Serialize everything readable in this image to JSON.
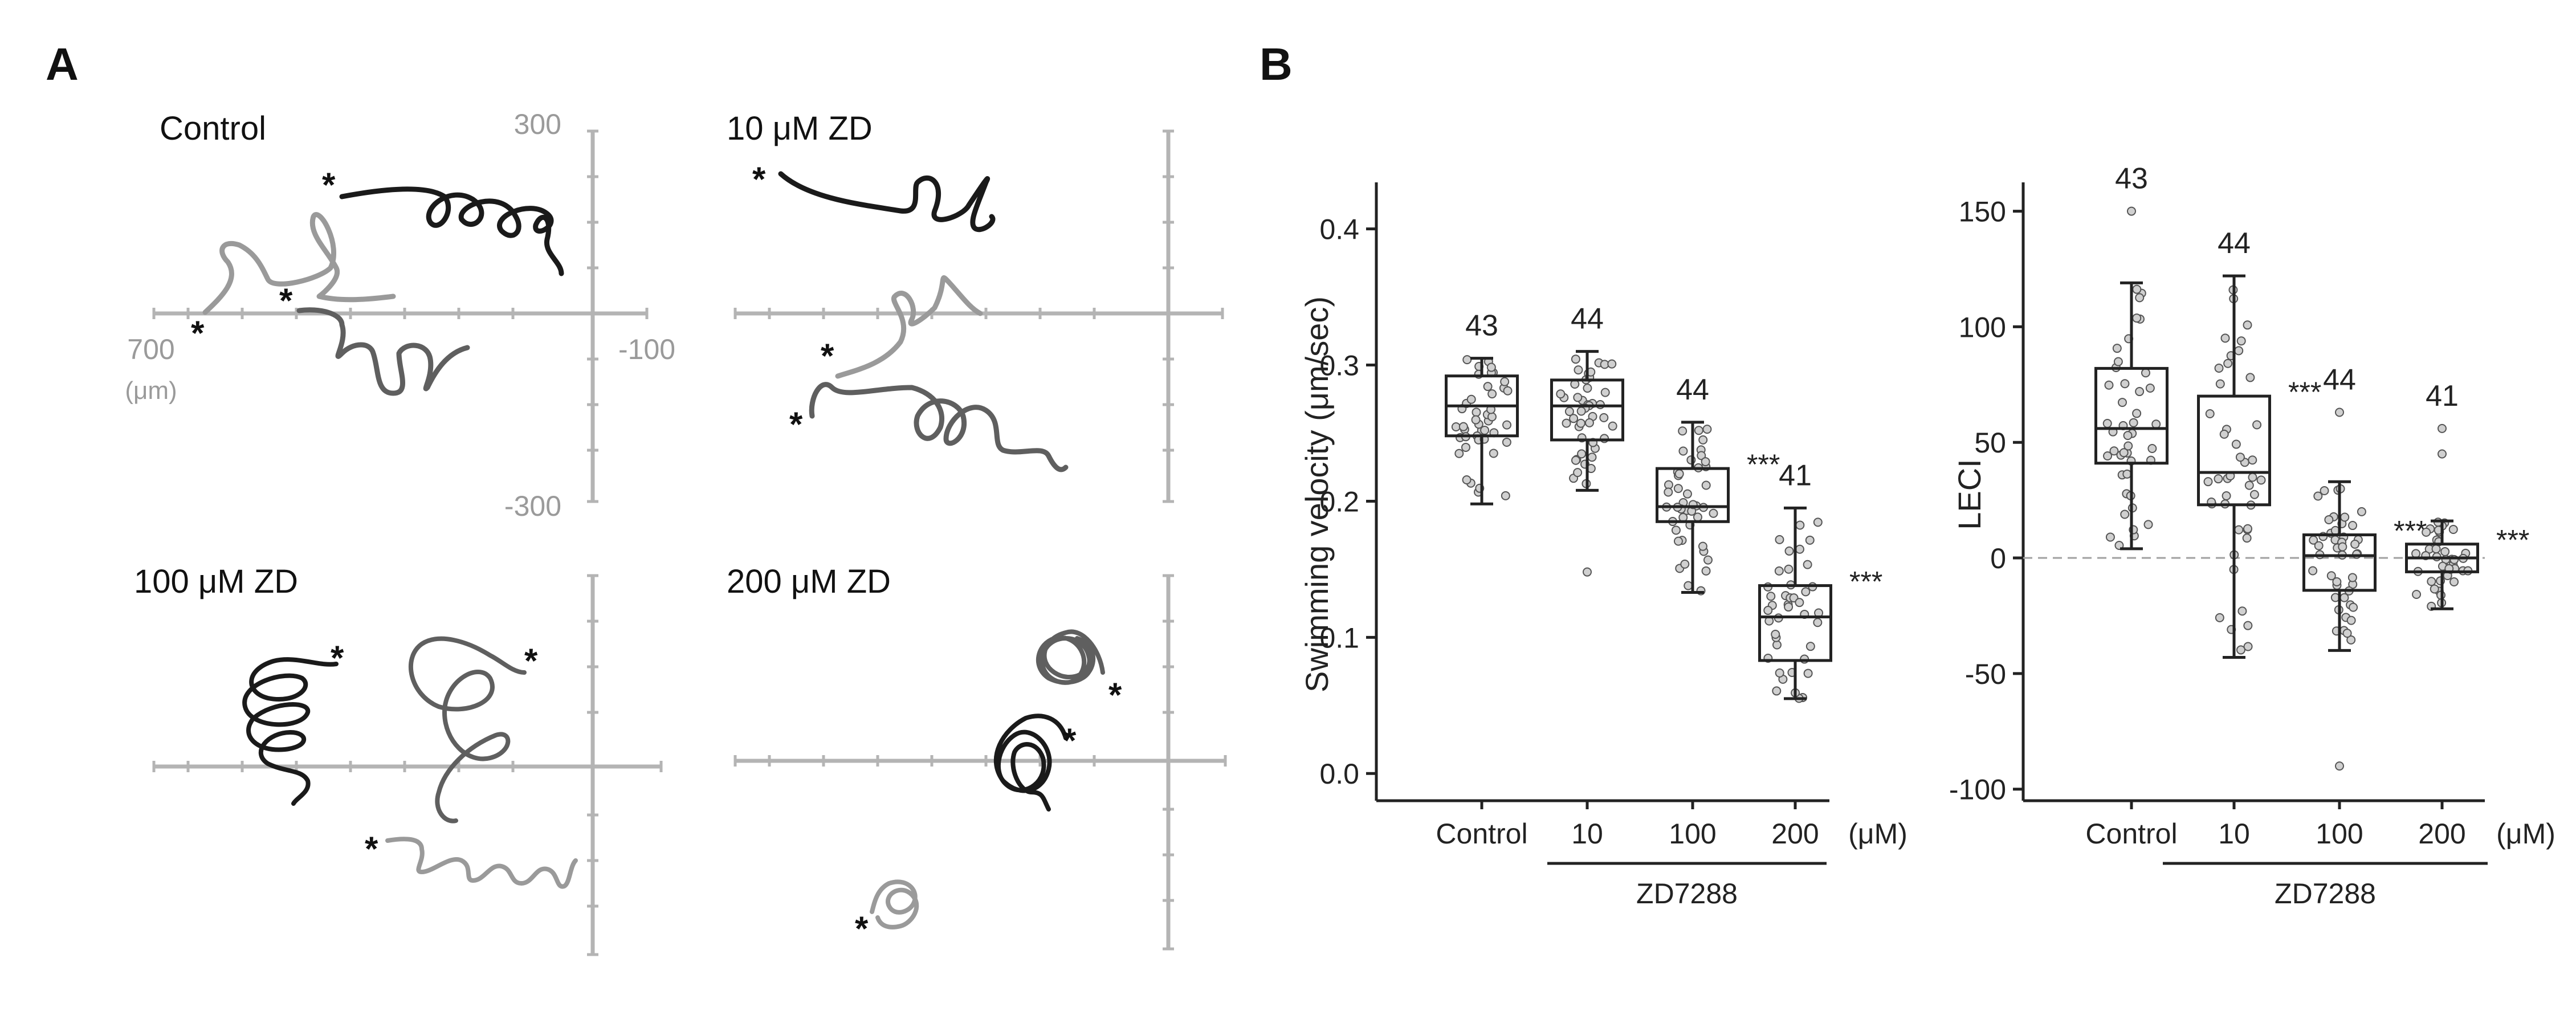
{
  "panel_labels": {
    "a": "A",
    "b": "B"
  },
  "panelA": {
    "axis_color": "#b4b4b4",
    "quadrants": [
      {
        "title": "Control",
        "x_left_label": "700",
        "x_unit_label": "(μm)",
        "x_right_label": "-100",
        "y_top_label": "300",
        "y_bottom_label": "-300"
      },
      {
        "title": "10 μM ZD"
      },
      {
        "title": "100 μM ZD"
      },
      {
        "title": "200 μM ZD"
      }
    ],
    "start_marker": "*",
    "trace_colors": [
      "#1a1a1a",
      "#5f5f5f",
      "#9a9a9a"
    ]
  },
  "chart_data": [
    {
      "type": "box",
      "ylabel": "Swimming velocity (μm/sec)",
      "ylim": [
        -0.02,
        0.43
      ],
      "yticks": [
        0.0,
        0.1,
        0.2,
        0.3,
        0.4
      ],
      "ytick_labels": [
        "0.0",
        "0.1",
        "0.2",
        "0.3",
        "0.4"
      ],
      "categories": [
        "Control",
        "10",
        "100",
        "200"
      ],
      "unit_label": "(μM)",
      "group_label": "ZD7288",
      "n_labels": [
        "43",
        "44",
        "44",
        "41"
      ],
      "significance": [
        "",
        "",
        "***",
        "***"
      ],
      "boxes": [
        {
          "whislo": 0.198,
          "q1": 0.248,
          "med": 0.27,
          "q3": 0.292,
          "whishi": 0.305,
          "outliers": []
        },
        {
          "whislo": 0.208,
          "q1": 0.245,
          "med": 0.27,
          "q3": 0.289,
          "whishi": 0.31,
          "outliers": [
            0.148
          ]
        },
        {
          "whislo": 0.133,
          "q1": 0.185,
          "med": 0.196,
          "q3": 0.224,
          "whishi": 0.258,
          "outliers": []
        },
        {
          "whislo": 0.055,
          "q1": 0.083,
          "med": 0.115,
          "q3": 0.138,
          "whishi": 0.195,
          "outliers": []
        }
      ]
    },
    {
      "type": "box",
      "ylabel": "LECI",
      "ylim": [
        -105,
        160
      ],
      "yticks": [
        -100,
        -50,
        0,
        50,
        100,
        150
      ],
      "ytick_labels": [
        "-100",
        "-50",
        "0",
        "50",
        "100",
        "150"
      ],
      "zero_line": 0,
      "categories": [
        "Control",
        "10",
        "100",
        "200"
      ],
      "unit_label": "(μM)",
      "group_label": "ZD7288",
      "n_labels": [
        "43",
        "44",
        "44",
        "41"
      ],
      "significance": [
        "",
        "***",
        "***",
        "***"
      ],
      "boxes": [
        {
          "whislo": 4,
          "q1": 41,
          "med": 56,
          "q3": 82,
          "whishi": 119,
          "outliers": [
            150
          ]
        },
        {
          "whislo": -43,
          "q1": 23,
          "med": 37,
          "q3": 70,
          "whishi": 122,
          "outliers": []
        },
        {
          "whislo": -40,
          "q1": -14,
          "med": 1,
          "q3": 10,
          "whishi": 33,
          "outliers": [
            63,
            -90
          ]
        },
        {
          "whislo": -22,
          "q1": -6,
          "med": 0,
          "q3": 6,
          "whishi": 16,
          "outliers": [
            56,
            45
          ]
        }
      ]
    }
  ]
}
